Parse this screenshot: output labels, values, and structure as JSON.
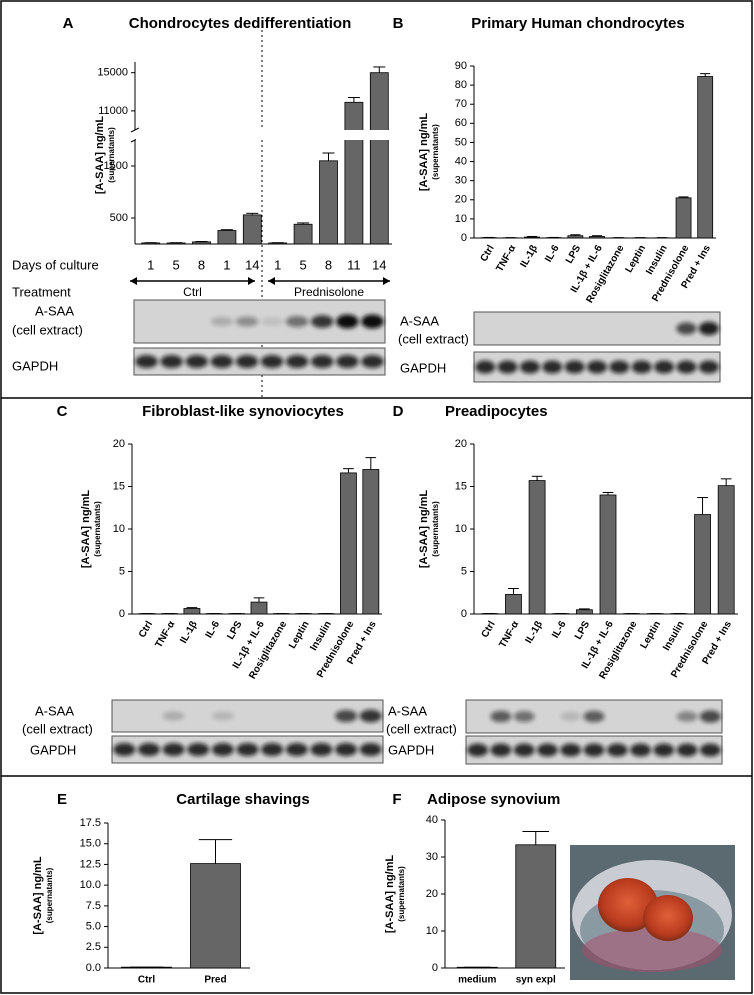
{
  "chart_data": [
    {
      "type": "bar",
      "panel": "A",
      "title": "Chondrocytes dedifferentiation",
      "y_label": "[A-SAA] ng/mL",
      "y_sublabel": "(supernatants)",
      "categories": [
        "1",
        "5",
        "8",
        "1",
        "14",
        "1",
        "5",
        "8",
        "11",
        "14"
      ],
      "values": [
        20,
        20,
        40,
        260,
        560,
        20,
        380,
        1600,
        11900,
        15000
      ],
      "errors": [
        5,
        5,
        8,
        15,
        30,
        5,
        25,
        150,
        500,
        600
      ],
      "ylim": [
        0,
        15700
      ],
      "axis_break": [
        2000,
        9000
      ],
      "yticks": [
        500,
        1500,
        11000,
        15000
      ],
      "color": "#666666",
      "x_row_labels": [
        "Days of culture",
        "Treatment"
      ],
      "groups": [
        "Ctrl",
        "Prednisolone"
      ],
      "blot_labels": [
        "A-SAA",
        "(cell extract)",
        "GAPDH"
      ]
    },
    {
      "type": "bar",
      "panel": "B",
      "title": "Primary Human chondrocytes",
      "y_label": "[A-SAA] ng/mL",
      "y_sublabel": "(supernatants)",
      "categories": [
        "Ctrl",
        "TNF-α",
        "IL-1β",
        "IL-6",
        "LPS",
        "IL-1β + IL-6",
        "Rosiglitazone",
        "Leptin",
        "Insulin",
        "Prednisolone",
        "Pred + Ins"
      ],
      "values": [
        0.2,
        0.1,
        0.5,
        0.2,
        1.2,
        0.8,
        0.1,
        0.1,
        0.1,
        21,
        84.5
      ],
      "errors": [
        0.1,
        0.1,
        0.3,
        0.1,
        0.5,
        0.4,
        0.1,
        0.1,
        0.1,
        0.5,
        1.5
      ],
      "ylim": [
        0,
        90
      ],
      "yticks": [
        0,
        10,
        20,
        30,
        40,
        50,
        60,
        70,
        80,
        90
      ],
      "color": "#666666",
      "blot_labels": [
        "A-SAA",
        "(cell extract)",
        "GAPDH"
      ]
    },
    {
      "type": "bar",
      "panel": "C",
      "title": "Fibroblast-like synoviocytes",
      "y_label": "[A-SAA] ng/mL",
      "y_sublabel": "(supernatants)",
      "categories": [
        "Ctrl",
        "TNF-α",
        "IL-1β",
        "IL-6",
        "LPS",
        "IL-1β + IL-6",
        "Rosiglitazone",
        "Leptin",
        "Insulin",
        "Prednisolone",
        "Pred + Ins"
      ],
      "values": [
        0.05,
        0.05,
        0.65,
        0.05,
        0.05,
        1.4,
        0.05,
        0.05,
        0.05,
        16.6,
        17
      ],
      "errors": [
        0,
        0,
        0.1,
        0,
        0,
        0.5,
        0,
        0,
        0,
        0.5,
        1.4
      ],
      "ylim": [
        0,
        20
      ],
      "yticks": [
        0,
        5,
        10,
        15,
        20
      ],
      "color": "#666666",
      "blot_labels": [
        "A-SAA",
        "(cell extract)",
        "GAPDH"
      ]
    },
    {
      "type": "bar",
      "panel": "D",
      "title": "Preadipocytes",
      "y_label": "[A-SAA] ng/mL",
      "y_sublabel": "(supernatants)",
      "categories": [
        "Ctrl",
        "TNF-α",
        "IL-1β",
        "IL-6",
        "LPS",
        "IL-1β + IL-6",
        "Rosiglitazone",
        "Leptin",
        "Insulin",
        "Prednisolone",
        "Pred + Ins"
      ],
      "values": [
        0.05,
        2.3,
        15.7,
        0.05,
        0.5,
        14,
        0.05,
        0.05,
        0.05,
        11.7,
        15.1
      ],
      "errors": [
        0,
        0.7,
        0.5,
        0,
        0.1,
        0.3,
        0,
        0,
        0,
        2,
        0.8
      ],
      "ylim": [
        0,
        20
      ],
      "yticks": [
        0,
        5,
        10,
        15,
        20
      ],
      "color": "#666666",
      "blot_labels": [
        "A-SAA",
        "(cell extract)",
        "GAPDH"
      ]
    },
    {
      "type": "bar",
      "panel": "E",
      "title": "Cartilage shavings",
      "y_label": "[A-SAA] ng/mL",
      "y_sublabel": "(supernatants)",
      "categories": [
        "Ctrl",
        "Pred"
      ],
      "values": [
        0.1,
        12.6
      ],
      "errors": [
        0,
        2.9
      ],
      "ylim": [
        0,
        17.5
      ],
      "yticks": [
        {
          "value": 0,
          "label": "0.0"
        },
        2.5,
        {
          "value": 5,
          "label": "5.0"
        },
        7.5,
        {
          "value": 10,
          "label": "10.0"
        },
        12.5,
        {
          "value": 15,
          "label": "15.0"
        },
        17.5
      ],
      "color": "#666666"
    },
    {
      "type": "bar",
      "panel": "F",
      "title": "Adipose synovium",
      "y_label": "[A-SAA] ng/mL",
      "y_sublabel": "(supernatants)",
      "categories": [
        "medium",
        "syn expl"
      ],
      "values": [
        0.2,
        33.3
      ],
      "errors": [
        0,
        3.6
      ],
      "ylim": [
        0,
        40
      ],
      "yticks": [
        0,
        10,
        20,
        30,
        40
      ],
      "color": "#666666"
    }
  ]
}
